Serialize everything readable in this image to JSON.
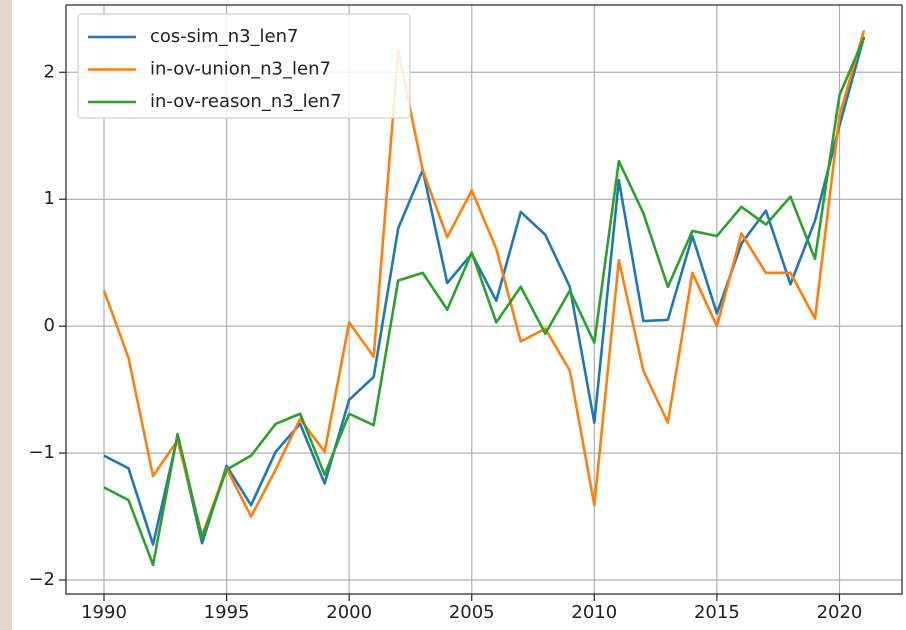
{
  "chart_data": {
    "type": "line",
    "x": [
      1990,
      1991,
      1992,
      1993,
      1994,
      1995,
      1996,
      1997,
      1998,
      1999,
      2000,
      2001,
      2002,
      2003,
      2004,
      2005,
      2006,
      2007,
      2008,
      2009,
      2010,
      2011,
      2012,
      2013,
      2014,
      2015,
      2016,
      2017,
      2018,
      2019,
      2020,
      2021
    ],
    "series": [
      {
        "name": "cos-sim_n3_len7",
        "color": "#1f77b4",
        "values": [
          -1.02,
          -1.12,
          -1.72,
          -0.87,
          -1.71,
          -1.1,
          -1.41,
          -0.99,
          -0.77,
          -1.24,
          -0.58,
          -0.4,
          0.77,
          1.23,
          0.34,
          0.57,
          0.2,
          0.9,
          0.72,
          0.31,
          -0.76,
          1.15,
          0.04,
          0.05,
          0.71,
          0.1,
          0.65,
          0.91,
          0.33,
          0.83,
          1.58,
          2.28
        ]
      },
      {
        "name": "in-ov-union_n3_len7",
        "color": "#ff7f0e",
        "values": [
          0.28,
          -0.25,
          -1.18,
          -0.9,
          -1.65,
          -1.12,
          -1.5,
          -1.13,
          -0.73,
          -0.99,
          0.03,
          -0.24,
          2.17,
          1.23,
          0.7,
          1.07,
          0.61,
          -0.12,
          -0.02,
          -0.35,
          -1.41,
          0.52,
          -0.35,
          -0.76,
          0.42,
          0.0,
          0.73,
          0.42,
          0.42,
          0.06,
          1.66,
          2.33
        ]
      },
      {
        "name": "in-ov-reason_n3_len7",
        "color": "#2ca02c",
        "values": [
          -1.27,
          -1.37,
          -1.88,
          -0.85,
          -1.67,
          -1.13,
          -1.02,
          -0.77,
          -0.69,
          -1.17,
          -0.69,
          -0.78,
          0.36,
          0.42,
          0.13,
          0.58,
          0.03,
          0.31,
          -0.06,
          0.28,
          -0.13,
          1.3,
          0.89,
          0.31,
          0.75,
          0.71,
          0.94,
          0.8,
          1.02,
          0.53,
          1.82,
          2.27
        ]
      }
    ],
    "xlim": [
      1988.45,
      2022.55
    ],
    "xticks": [
      1990,
      1995,
      2000,
      2005,
      2010,
      2015,
      2020
    ],
    "ylim": [
      -2.11,
      2.53
    ],
    "yticks": [
      {
        "value": -2,
        "label": "−2"
      },
      {
        "value": -1,
        "label": "−1"
      },
      0,
      1,
      2
    ],
    "grid": true,
    "legend": "upper left"
  }
}
